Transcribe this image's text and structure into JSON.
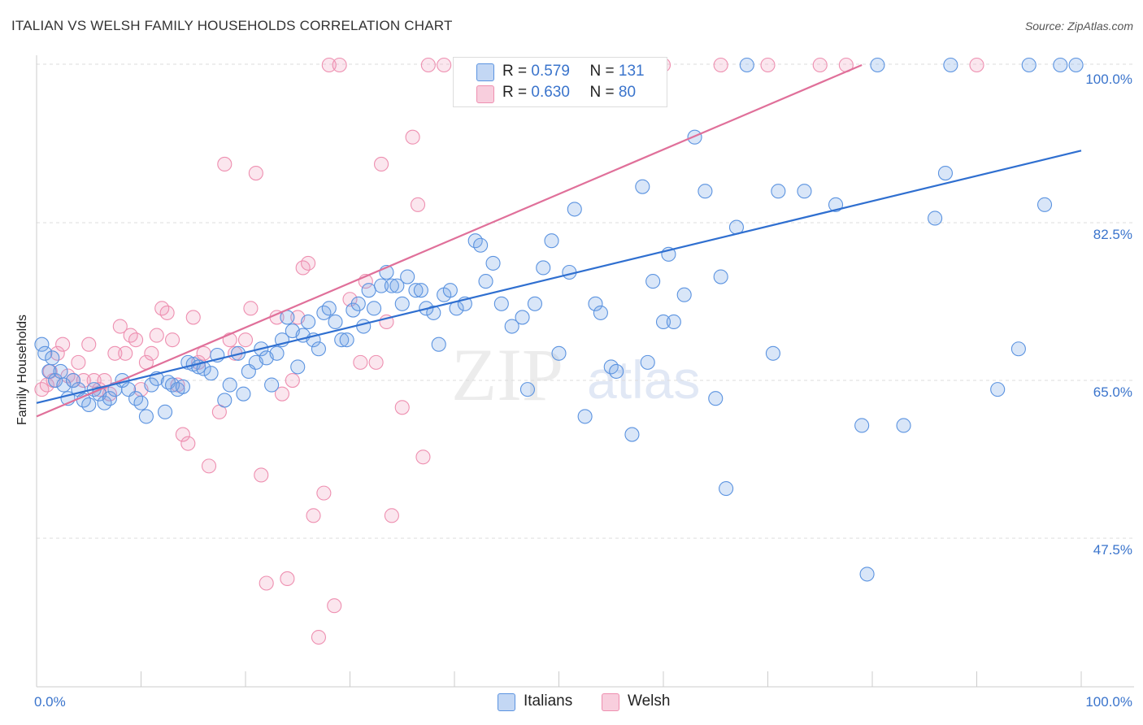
{
  "header": {
    "title": "ITALIAN VS WELSH FAMILY HOUSEHOLDS CORRELATION CHART",
    "source": "Source: ZipAtlas.com"
  },
  "watermark": {
    "zip": "ZIP",
    "atlas": "atlas"
  },
  "legend": {
    "r_label": "R =",
    "n_label": "N =",
    "italians": {
      "r": "0.579",
      "n": "131",
      "color": "#5b93e0"
    },
    "welsh": {
      "r": "0.630",
      "n": "80",
      "color": "#ee8fb0"
    }
  },
  "bottom_legend": {
    "italians": "Italians",
    "welsh": "Welsh"
  },
  "chart_data": {
    "type": "scatter",
    "title": "ITALIAN VS WELSH FAMILY HOUSEHOLDS CORRELATION CHART",
    "xlabel": "",
    "ylabel": "Family Households",
    "xlim": [
      0,
      100
    ],
    "ylim": [
      31,
      100
    ],
    "x_tick_labels": [
      "0.0%",
      "100.0%"
    ],
    "y_tick_labels": [
      "100.0%",
      "82.5%",
      "65.0%",
      "47.5%"
    ],
    "y_ticks": [
      100,
      82.5,
      65,
      47.5
    ],
    "grid": true,
    "legend_position": "top-center",
    "series": [
      {
        "name": "Italians",
        "color": "#5b93e0",
        "trend": {
          "x": [
            0,
            100
          ],
          "y": [
            62.5,
            90.5
          ]
        },
        "points": [
          [
            0.5,
            69
          ],
          [
            0.8,
            68
          ],
          [
            1.2,
            66
          ],
          [
            1.5,
            67.5
          ],
          [
            1.8,
            65
          ],
          [
            2.3,
            66
          ],
          [
            2.6,
            64.5
          ],
          [
            3,
            63
          ],
          [
            3.5,
            65
          ],
          [
            4,
            64
          ],
          [
            4.5,
            62.8
          ],
          [
            5,
            62.3
          ],
          [
            5.5,
            64
          ],
          [
            6,
            63.5
          ],
          [
            6.5,
            62.5
          ],
          [
            7,
            63
          ],
          [
            7.5,
            64
          ],
          [
            8.2,
            65
          ],
          [
            8.8,
            64
          ],
          [
            9.5,
            63
          ],
          [
            10,
            62.5
          ],
          [
            10.5,
            61
          ],
          [
            11,
            64.5
          ],
          [
            11.5,
            65.2
          ],
          [
            12.3,
            61.5
          ],
          [
            12.6,
            64.8
          ],
          [
            13,
            64.5
          ],
          [
            13.5,
            64
          ],
          [
            14,
            64.3
          ],
          [
            14.5,
            67
          ],
          [
            15,
            66.8
          ],
          [
            15.5,
            66.5
          ],
          [
            16,
            66.3
          ],
          [
            16.7,
            65.8
          ],
          [
            17.3,
            67.8
          ],
          [
            18,
            62.8
          ],
          [
            18.5,
            64.5
          ],
          [
            19.3,
            68
          ],
          [
            19.8,
            63.5
          ],
          [
            20.3,
            66
          ],
          [
            21,
            67
          ],
          [
            21.5,
            68.5
          ],
          [
            22,
            67.5
          ],
          [
            22.5,
            64.5
          ],
          [
            23,
            68
          ],
          [
            23.5,
            69.5
          ],
          [
            24,
            72
          ],
          [
            24.5,
            70.5
          ],
          [
            25,
            66.5
          ],
          [
            25.5,
            70
          ],
          [
            26,
            71.5
          ],
          [
            26.5,
            69.5
          ],
          [
            27,
            68.5
          ],
          [
            27.5,
            72.5
          ],
          [
            28,
            73
          ],
          [
            28.6,
            71.5
          ],
          [
            29.2,
            69.5
          ],
          [
            29.7,
            69.5
          ],
          [
            30.3,
            72.8
          ],
          [
            30.8,
            73.5
          ],
          [
            31.3,
            71
          ],
          [
            31.8,
            75
          ],
          [
            32.3,
            73
          ],
          [
            33,
            75.5
          ],
          [
            33.5,
            77
          ],
          [
            34,
            75.5
          ],
          [
            34.5,
            75.5
          ],
          [
            35,
            73.5
          ],
          [
            35.5,
            76.5
          ],
          [
            36.3,
            75
          ],
          [
            36.8,
            75
          ],
          [
            37.3,
            73
          ],
          [
            38,
            72.5
          ],
          [
            38.5,
            69
          ],
          [
            39,
            74.5
          ],
          [
            39.6,
            75
          ],
          [
            40.2,
            73
          ],
          [
            41,
            73.5
          ],
          [
            42,
            80.5
          ],
          [
            42.5,
            80
          ],
          [
            43,
            76
          ],
          [
            43.7,
            78
          ],
          [
            44.5,
            73.5
          ],
          [
            45.5,
            71
          ],
          [
            46.5,
            72
          ],
          [
            47,
            64
          ],
          [
            47.7,
            73.5
          ],
          [
            48.5,
            77.5
          ],
          [
            49.3,
            80.5
          ],
          [
            50,
            68
          ],
          [
            51,
            77
          ],
          [
            51.5,
            84
          ],
          [
            52.5,
            61
          ],
          [
            53.5,
            73.5
          ],
          [
            54,
            72.5
          ],
          [
            55,
            66.5
          ],
          [
            55.5,
            66
          ],
          [
            57,
            59
          ],
          [
            58,
            86.5
          ],
          [
            58.5,
            67
          ],
          [
            59,
            76
          ],
          [
            60,
            71.5
          ],
          [
            60.5,
            79
          ],
          [
            61,
            71.5
          ],
          [
            62,
            74.5
          ],
          [
            63,
            92
          ],
          [
            64,
            86
          ],
          [
            65,
            63
          ],
          [
            65.5,
            76.5
          ],
          [
            66,
            53
          ],
          [
            67,
            82
          ],
          [
            68,
            100
          ],
          [
            70.5,
            68
          ],
          [
            71,
            86
          ],
          [
            73.5,
            86
          ],
          [
            76.5,
            84.5
          ],
          [
            79,
            60
          ],
          [
            79.5,
            43.5
          ],
          [
            80.5,
            100
          ],
          [
            83,
            60
          ],
          [
            86,
            83
          ],
          [
            87,
            88
          ],
          [
            87.5,
            100
          ],
          [
            92,
            64
          ],
          [
            94,
            68.5
          ],
          [
            95,
            100
          ],
          [
            96.5,
            84.5
          ],
          [
            98,
            100
          ],
          [
            99.5,
            100
          ]
        ]
      },
      {
        "name": "Welsh",
        "color": "#ee8fb0",
        "trend": {
          "x": [
            0,
            79
          ],
          "y": [
            61,
            100
          ]
        },
        "points": [
          [
            0.5,
            64
          ],
          [
            1,
            64.5
          ],
          [
            1.3,
            66
          ],
          [
            1.6,
            65
          ],
          [
            2,
            68
          ],
          [
            2.5,
            69
          ],
          [
            3,
            65.5
          ],
          [
            3.5,
            65
          ],
          [
            4,
            67
          ],
          [
            4.5,
            65
          ],
          [
            5,
            69
          ],
          [
            5.5,
            65
          ],
          [
            6,
            64
          ],
          [
            6.5,
            65
          ],
          [
            7,
            63.5
          ],
          [
            7.5,
            68
          ],
          [
            8,
            71
          ],
          [
            8.5,
            68
          ],
          [
            9,
            70
          ],
          [
            9.5,
            69.5
          ],
          [
            10,
            64
          ],
          [
            10.5,
            67
          ],
          [
            11,
            68
          ],
          [
            11.5,
            70
          ],
          [
            12,
            73
          ],
          [
            12.5,
            72.5
          ],
          [
            13,
            69.5
          ],
          [
            13.5,
            64.5
          ],
          [
            14,
            59
          ],
          [
            14.5,
            58
          ],
          [
            15,
            72
          ],
          [
            15.5,
            67
          ],
          [
            16,
            68
          ],
          [
            16.5,
            55.5
          ],
          [
            17.5,
            61.5
          ],
          [
            18,
            89
          ],
          [
            18.5,
            69.5
          ],
          [
            19,
            68
          ],
          [
            20,
            69.5
          ],
          [
            20.5,
            73
          ],
          [
            21,
            88
          ],
          [
            21.5,
            54.5
          ],
          [
            22,
            42.5
          ],
          [
            23,
            72
          ],
          [
            23.5,
            63.5
          ],
          [
            24,
            43
          ],
          [
            24.5,
            65
          ],
          [
            25,
            72
          ],
          [
            25.5,
            77.5
          ],
          [
            26,
            78
          ],
          [
            26.5,
            50
          ],
          [
            27,
            36.5
          ],
          [
            27.5,
            52.5
          ],
          [
            28,
            100
          ],
          [
            28.5,
            40
          ],
          [
            29,
            100
          ],
          [
            30,
            74
          ],
          [
            31,
            67
          ],
          [
            31.5,
            76
          ],
          [
            32.5,
            67
          ],
          [
            33,
            89
          ],
          [
            33.5,
            71.5
          ],
          [
            34,
            50
          ],
          [
            35,
            62
          ],
          [
            36,
            92
          ],
          [
            36.5,
            84.5
          ],
          [
            37,
            56.5
          ],
          [
            37.5,
            100
          ],
          [
            39,
            100
          ],
          [
            44.5,
            100
          ],
          [
            47,
            100
          ],
          [
            49.5,
            100
          ],
          [
            52,
            100
          ],
          [
            60,
            100
          ],
          [
            65.5,
            100
          ],
          [
            70,
            100
          ],
          [
            75,
            100
          ],
          [
            77.5,
            100
          ],
          [
            90,
            100
          ]
        ]
      }
    ]
  }
}
